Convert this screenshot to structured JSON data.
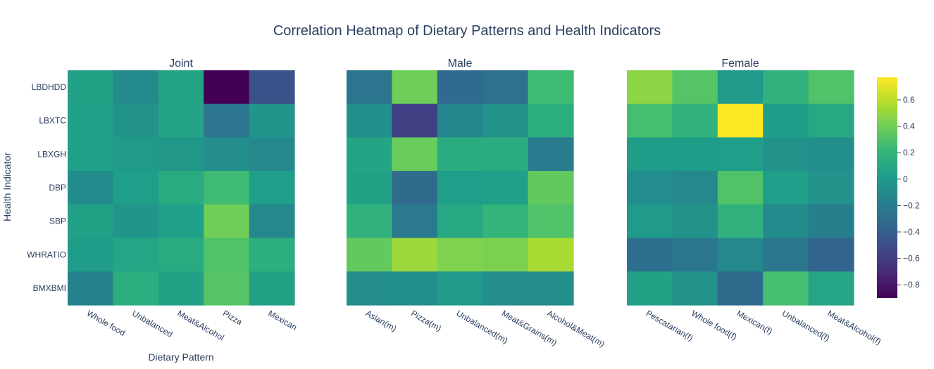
{
  "chart_data": {
    "type": "heatmap",
    "title": "Correlation Heatmap of Dietary Patterns and Health Indicators",
    "xlabel": "Dietary Pattern",
    "ylabel": "Health Indicator",
    "colorscale": "Viridis",
    "colorbar": {
      "range": [
        -0.9,
        0.77
      ],
      "ticks": [
        0.6,
        0.4,
        0.2,
        0,
        -0.2,
        -0.4,
        -0.6,
        -0.8
      ],
      "tick_labels": [
        "0.6",
        "0.4",
        "0.2",
        "0",
        "−0.2",
        "−0.4",
        "−0.6",
        "−0.8"
      ]
    },
    "y_categories": [
      "LBDHDD",
      "LBXTC",
      "LBXGH",
      "DBP",
      "SBP",
      "WHRATIO",
      "BMXBMI"
    ],
    "panels": [
      {
        "name": "Joint",
        "x_categories": [
          "Whole food",
          "Unbalanced",
          "Meat&Alcohol",
          "Pizza",
          "Mexican"
        ],
        "values": [
          [
            0.05,
            -0.1,
            0.07,
            -0.9,
            -0.48
          ],
          [
            0.04,
            -0.05,
            0.07,
            -0.25,
            -0.03
          ],
          [
            0.04,
            0.01,
            -0.02,
            -0.08,
            -0.12
          ],
          [
            -0.1,
            0.03,
            0.12,
            0.25,
            0.03
          ],
          [
            0.05,
            -0.03,
            0.04,
            0.4,
            -0.12
          ],
          [
            0.02,
            0.08,
            0.12,
            0.3,
            0.15
          ],
          [
            -0.15,
            0.15,
            0.05,
            0.32,
            0.05
          ]
        ]
      },
      {
        "name": "Male",
        "x_categories": [
          "Asian(m)",
          "Pizza(m)",
          "Unbalanced(m)",
          "Meat&Grains(m)",
          "Alcohol&Meat(m)"
        ],
        "values": [
          [
            -0.25,
            0.4,
            -0.33,
            -0.28,
            0.25
          ],
          [
            -0.07,
            -0.58,
            -0.13,
            -0.05,
            0.15
          ],
          [
            0.07,
            0.38,
            0.13,
            0.13,
            -0.2
          ],
          [
            0.05,
            -0.32,
            0.03,
            0.04,
            0.36
          ],
          [
            0.18,
            -0.22,
            0.1,
            0.2,
            0.3
          ],
          [
            0.36,
            0.52,
            0.44,
            0.43,
            0.55
          ],
          [
            -0.08,
            -0.07,
            0.0,
            -0.08,
            -0.08
          ]
        ]
      },
      {
        "name": "Female",
        "x_categories": [
          "Pescatarian(f)",
          "Whole food(f)",
          "Mexican(f)",
          "Unbalanced(f)",
          "Meat&Alcohol(f)"
        ],
        "values": [
          [
            0.48,
            0.32,
            0.0,
            0.18,
            0.3
          ],
          [
            0.27,
            0.18,
            0.77,
            0.02,
            0.1
          ],
          [
            0.02,
            0.02,
            0.03,
            -0.05,
            -0.07
          ],
          [
            -0.09,
            -0.12,
            0.3,
            0.03,
            -0.05
          ],
          [
            0.0,
            -0.05,
            0.17,
            -0.1,
            -0.18
          ],
          [
            -0.3,
            -0.24,
            -0.12,
            -0.24,
            -0.37
          ],
          [
            0.05,
            -0.05,
            -0.32,
            0.27,
            0.08
          ]
        ]
      }
    ]
  }
}
